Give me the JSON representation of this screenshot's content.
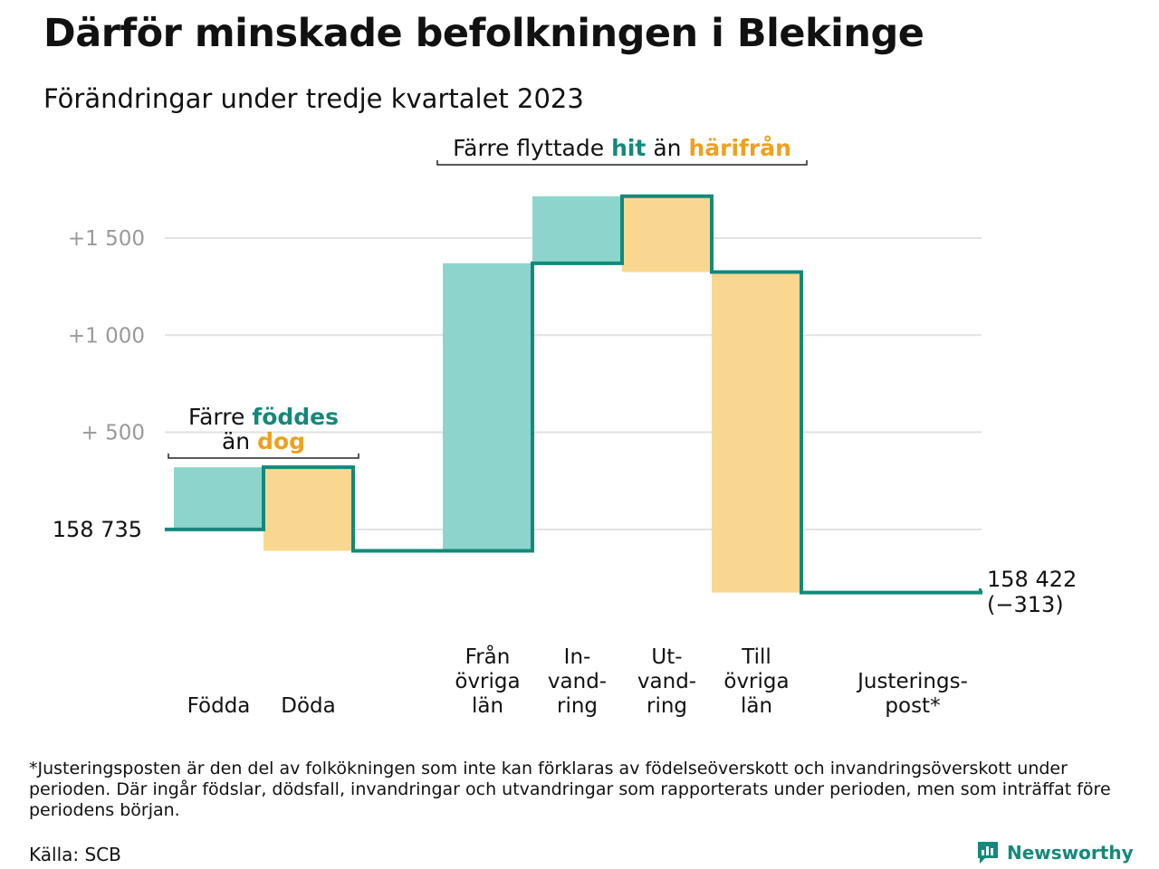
{
  "title": "Därför minskade befolkningen i Blekinge",
  "subtitle": "Förändringar under tredje kvartalet 2023",
  "colors": {
    "teal_line": "#13897a",
    "teal_fill": "#8dd5cc",
    "orange_fill": "#fad791",
    "orange_text": "#f0a01e",
    "grid": "#e2e2e2",
    "tick_text": "#999999"
  },
  "chart_data": {
    "type": "waterfall",
    "start_value": 158735,
    "start_label": "158 735",
    "end_label": "158 422",
    "end_change_label": "(−313)",
    "yticks": [
      {
        "value": 500,
        "label": "+ 500"
      },
      {
        "value": 1000,
        "label": "+1 000"
      },
      {
        "value": 1500,
        "label": "+1 500"
      }
    ],
    "ylim": [
      -420,
      1770
    ],
    "grid": true,
    "steps": [
      {
        "label": [
          "Födda"
        ],
        "from": 0,
        "to": 320,
        "kind": "in"
      },
      {
        "label": [
          "Döda"
        ],
        "from": 320,
        "to": -110,
        "kind": "out"
      },
      {
        "label": [],
        "from": -110,
        "to": -110,
        "kind": "flat"
      },
      {
        "label": [
          "Från",
          "övriga",
          "län"
        ],
        "from": -110,
        "to": 1370,
        "kind": "in"
      },
      {
        "label": [
          "In-",
          "vand-",
          "ring"
        ],
        "from": 1370,
        "to": 1715,
        "kind": "in"
      },
      {
        "label": [
          "Ut-",
          "vand-",
          "ring"
        ],
        "from": 1715,
        "to": 1325,
        "kind": "out"
      },
      {
        "label": [
          "Till",
          "övriga",
          "län"
        ],
        "from": 1325,
        "to": -325,
        "kind": "out"
      },
      {
        "label": [],
        "from": -325,
        "to": -325,
        "kind": "flat"
      },
      {
        "label": [
          "Justerings-",
          "post*"
        ],
        "from": -325,
        "to": -313,
        "kind": "flat"
      }
    ],
    "annotations": [
      {
        "lines": [
          [
            {
              "text": "Färre ",
              "style": "plain"
            },
            {
              "text": "föddes",
              "style": "in"
            }
          ],
          [
            {
              "text": "än ",
              "style": "plain"
            },
            {
              "text": "dog",
              "style": "out"
            }
          ]
        ],
        "over_steps": [
          0,
          1
        ]
      },
      {
        "lines": [
          [
            {
              "text": "Färre flyttade ",
              "style": "plain"
            },
            {
              "text": "hit",
              "style": "in"
            },
            {
              "text": " än ",
              "style": "plain"
            },
            {
              "text": "härifrån",
              "style": "out"
            }
          ]
        ],
        "over_steps": [
          3,
          6
        ]
      }
    ]
  },
  "footnote": "*Justeringsposten är den del av folkökningen som inte kan förklaras av födelseöverskott och invandringsöverskott under perioden. Där ingår födslar, dödsfall, invandringar och utvandringar som rapporterats under perioden, men som inträffat före periodens början.",
  "source": "Källa: SCB",
  "logo": {
    "text": "Newsworthy",
    "icon": "newsworthy-logo-icon"
  }
}
